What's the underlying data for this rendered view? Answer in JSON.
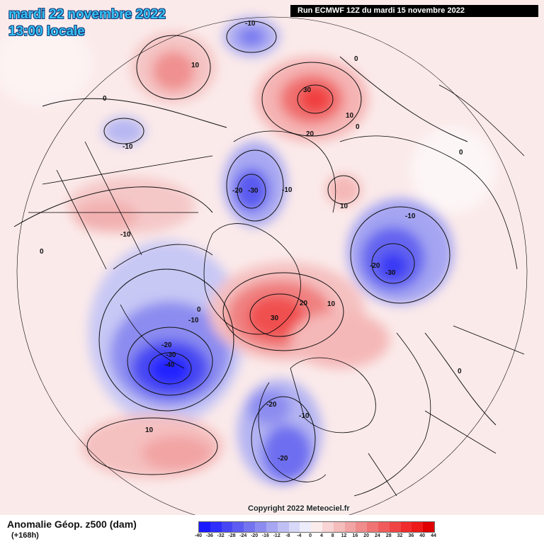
{
  "header": {
    "date_line": "mardi 22 novembre 2022",
    "time_line": "13:00 locale",
    "run_info": "Run ECMWF 12Z du mardi 15 novembre 2022"
  },
  "footer": {
    "title": "Anomalie Géop. z500 (dam)",
    "lead": "(+168h)",
    "copyright": "Copyright 2022 Meteociel.fr"
  },
  "legend": {
    "colors": [
      "#1a1aff",
      "#2e2eff",
      "#4646f5",
      "#5c5cf2",
      "#7474f0",
      "#8c8cf0",
      "#a6a6f2",
      "#c0c0f5",
      "#d8d8f8",
      "#ececfb",
      "#fbecec",
      "#f8d4d4",
      "#f5bcbc",
      "#f2a4a4",
      "#f08c8c",
      "#f07474",
      "#f05c5c",
      "#f04444",
      "#f02c2c",
      "#ee1a1a",
      "#e00000"
    ],
    "ticks": [
      "-40",
      "-36",
      "-32",
      "-28",
      "-24",
      "-20",
      "-16",
      "-12",
      "-8",
      "-4",
      "0",
      "4",
      "8",
      "12",
      "16",
      "20",
      "24",
      "28",
      "32",
      "36",
      "40",
      "44"
    ]
  },
  "contour_labels": [
    "-10",
    "10",
    "0",
    "30",
    "10",
    "20",
    "0",
    "0",
    "-10",
    "-20",
    "-30",
    "-10",
    "10",
    "-10",
    "-10",
    "0",
    "-20",
    "-30",
    "20",
    "30",
    "10",
    "-10",
    "0",
    "-20",
    "-30",
    "-40",
    "-20",
    "-10",
    "-20",
    "10",
    "0",
    "0"
  ]
}
